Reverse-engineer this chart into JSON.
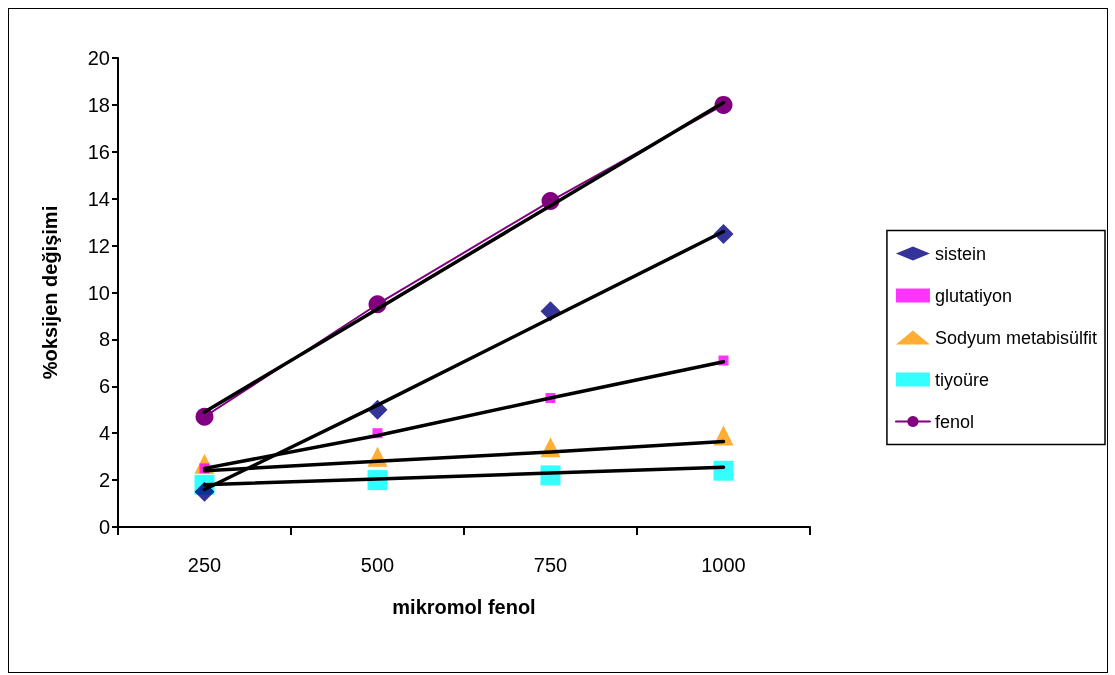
{
  "chart_data": {
    "type": "scatter",
    "xlabel": "mikromol fenol",
    "ylabel": "%oksijen değişimi",
    "categories": [
      "250",
      "500",
      "750",
      "1000"
    ],
    "ylim": [
      0,
      20
    ],
    "yticks": [
      0,
      2,
      4,
      6,
      8,
      10,
      12,
      14,
      16,
      18,
      20
    ],
    "grid": false,
    "legend": "right",
    "series": [
      {
        "name": "sistein",
        "marker": "diamond",
        "color": "#000080",
        "values": [
          1.5,
          5.0,
          9.2,
          12.5
        ]
      },
      {
        "name": "glutatiyon",
        "marker": "square",
        "color": "#ff00ff",
        "values": [
          2.5,
          4.0,
          5.5,
          7.1
        ]
      },
      {
        "name": "Sodyum metabisülfit",
        "marker": "triangle",
        "color": "#ff9900",
        "values": [
          2.7,
          3.0,
          3.4,
          3.9
        ]
      },
      {
        "name": "tiyoüre",
        "marker": "square",
        "color": "#00ffff",
        "values": [
          1.8,
          2.0,
          2.2,
          2.4
        ]
      },
      {
        "name": "fenol",
        "type": "line",
        "marker": "circle",
        "line_style": "solid",
        "color": "#800080",
        "values": [
          4.7,
          9.5,
          13.9,
          18.0
        ]
      },
      {
        "type": "line",
        "marker": "none",
        "line_style": "solid",
        "color": "#000000",
        "values": [
          4.9,
          9.3,
          13.7,
          18.1
        ]
      },
      {
        "type": "line",
        "marker": "none",
        "line_style": "solid",
        "color": "#000000",
        "values": [
          1.6,
          5.2,
          8.9,
          12.6
        ]
      },
      {
        "type": "line",
        "marker": "none",
        "line_style": "solid",
        "color": "#000000",
        "values": [
          2.5,
          3.9,
          5.5,
          7.05
        ]
      },
      {
        "type": "line",
        "marker": "none",
        "line_style": "solid",
        "color": "#000000",
        "values": [
          2.4,
          2.8,
          3.2,
          3.65
        ]
      },
      {
        "type": "line",
        "marker": "none",
        "line_style": "solid",
        "color": "#000000",
        "values": [
          1.8,
          2.05,
          2.3,
          2.55
        ]
      }
    ]
  }
}
